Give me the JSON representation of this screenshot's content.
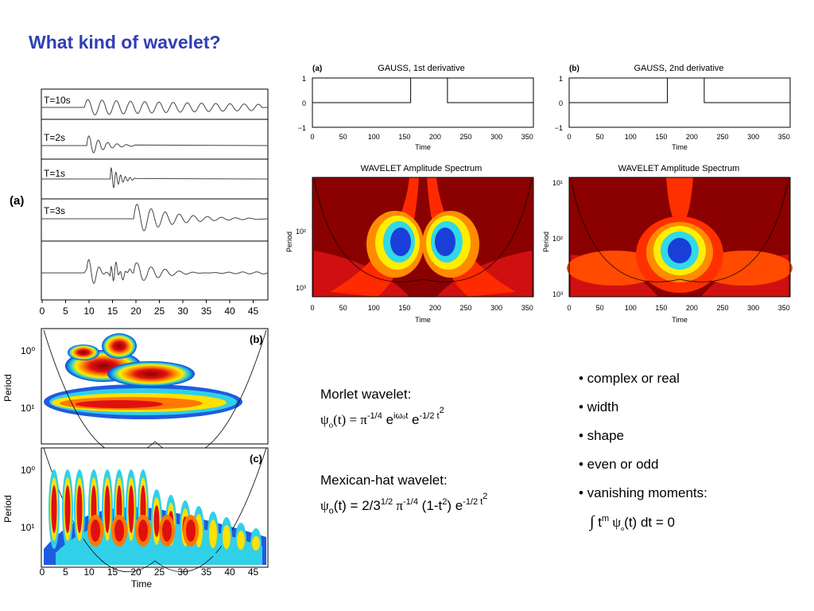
{
  "title": "What kind of wavelet?",
  "left_figure": {
    "panel_a_label": "(a)",
    "panel_b_label": "(b)",
    "panel_c_label": "(c)",
    "traces": [
      "T=10s",
      "T=2s",
      "T=1s",
      "T=3s",
      ""
    ],
    "time_ticks": [
      "0",
      "5",
      "10",
      "15",
      "20",
      "25",
      "30",
      "35",
      "40",
      "45"
    ],
    "period_label": "Period",
    "period_ticks": [
      "10⁰",
      "10¹"
    ],
    "time_label": "Time"
  },
  "gauss1": {
    "panel_label": "(a)",
    "title": "GAUSS, 1st derivative",
    "y_ticks": [
      "1",
      "0",
      "−1"
    ],
    "x_ticks": [
      "0",
      "50",
      "100",
      "150",
      "200",
      "250",
      "300",
      "350"
    ],
    "xlabel": "Time",
    "spectrum_title": "WAVELET Amplitude Spectrum",
    "spectrum_ylabel": "Period",
    "spectrum_y_ticks": [
      "10²",
      "10³"
    ]
  },
  "gauss2": {
    "panel_label": "(b)",
    "title": "GAUSS, 2nd derivative",
    "y_ticks": [
      "1",
      "0",
      "−1"
    ],
    "x_ticks": [
      "0",
      "50",
      "100",
      "150",
      "200",
      "250",
      "300",
      "350"
    ],
    "xlabel": "Time",
    "spectrum_title": "WAVELET Amplitude Spectrum",
    "spectrum_ylabel": "Period",
    "spectrum_y_ticks": [
      "10¹",
      "10²",
      "10³"
    ]
  },
  "chart_data": [
    {
      "type": "line",
      "title": "GAUSS, 1st derivative",
      "xlabel": "Time",
      "ylabel": "",
      "x": [
        0,
        160,
        160,
        220,
        220,
        360
      ],
      "y": [
        0,
        0,
        1,
        1,
        0,
        0
      ],
      "xlim": [
        0,
        360
      ],
      "ylim": [
        -1,
        1
      ]
    },
    {
      "type": "line",
      "title": "GAUSS, 2nd derivative",
      "xlabel": "Time",
      "ylabel": "",
      "x": [
        0,
        160,
        160,
        220,
        220,
        360
      ],
      "y": [
        0,
        0,
        1,
        1,
        0,
        0
      ],
      "xlim": [
        0,
        360
      ],
      "ylim": [
        -1,
        1
      ]
    }
  ],
  "morlet": {
    "heading": "Morlet wavelet:",
    "psi": "ψ",
    "sub_o": "o",
    "t_eq": "(t) = ",
    "pi": "π",
    "pi_exp": "-1/4",
    "e1": " e",
    "e1_exp": "iωₒt",
    "e2": " e",
    "e2_exp": "-1/2 t",
    "e2_exp2": "2"
  },
  "mexhat": {
    "heading": "Mexican-hat wavelet:",
    "psi": "ψ",
    "sub_o": "o",
    "t_eq": "(t) = 2/3",
    "three_exp": "1/2",
    "pi": " π",
    "pi_exp": "-1/4",
    "paren": " (1-t",
    "t_exp": "2",
    "paren_close": ") e",
    "e_exp": "-1/2 t",
    "e_exp2": "2"
  },
  "bullets": [
    "• complex or real",
    "• width",
    "• shape",
    "• even or odd",
    "• vanishing moments:"
  ],
  "moment": {
    "integral": "∫",
    "t": " t",
    "m": "m",
    "psi": " ψ",
    "sub_o": "ₒ",
    "rest": "(t) dt = 0"
  }
}
